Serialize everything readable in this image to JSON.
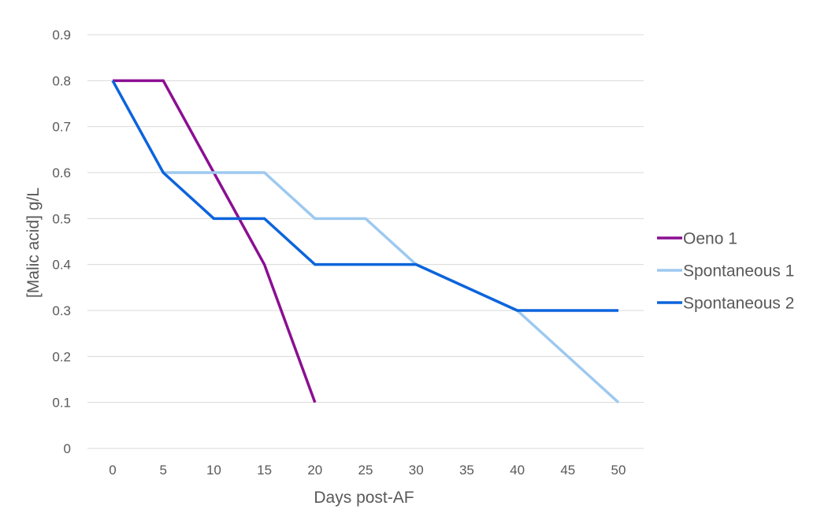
{
  "chart_data": {
    "type": "line",
    "title": "",
    "xlabel": "Days post-AF",
    "ylabel": "[Malic acid] g/L",
    "x_ticks": [
      "0",
      "5",
      "10",
      "15",
      "20",
      "25",
      "30",
      "35",
      "40",
      "45",
      "50"
    ],
    "y_ticks": [
      "0",
      "0.1",
      "0.2",
      "0.3",
      "0.4",
      "0.5",
      "0.6",
      "0.7",
      "0.8",
      "0.9"
    ],
    "xlim": [
      0,
      50
    ],
    "ylim": [
      0,
      0.9
    ],
    "grid": true,
    "legend_position": "right",
    "series": [
      {
        "name": "Oeno 1",
        "color": "#8b0f92",
        "x": [
          0,
          5,
          10,
          15,
          20
        ],
        "values": [
          0.8,
          0.8,
          0.6,
          0.4,
          0.1
        ]
      },
      {
        "name": "Spontaneous 1",
        "color": "#9dc9f0",
        "x": [
          5,
          10,
          15,
          20,
          25,
          30,
          40,
          50
        ],
        "values": [
          0.6,
          0.6,
          0.6,
          0.5,
          0.5,
          0.4,
          0.3,
          0.1
        ]
      },
      {
        "name": "Spontaneous 2",
        "color": "#0c64dc",
        "x": [
          0,
          5,
          10,
          15,
          20,
          30,
          40,
          50
        ],
        "values": [
          0.8,
          0.6,
          0.5,
          0.5,
          0.4,
          0.4,
          0.3,
          0.3
        ]
      }
    ]
  }
}
